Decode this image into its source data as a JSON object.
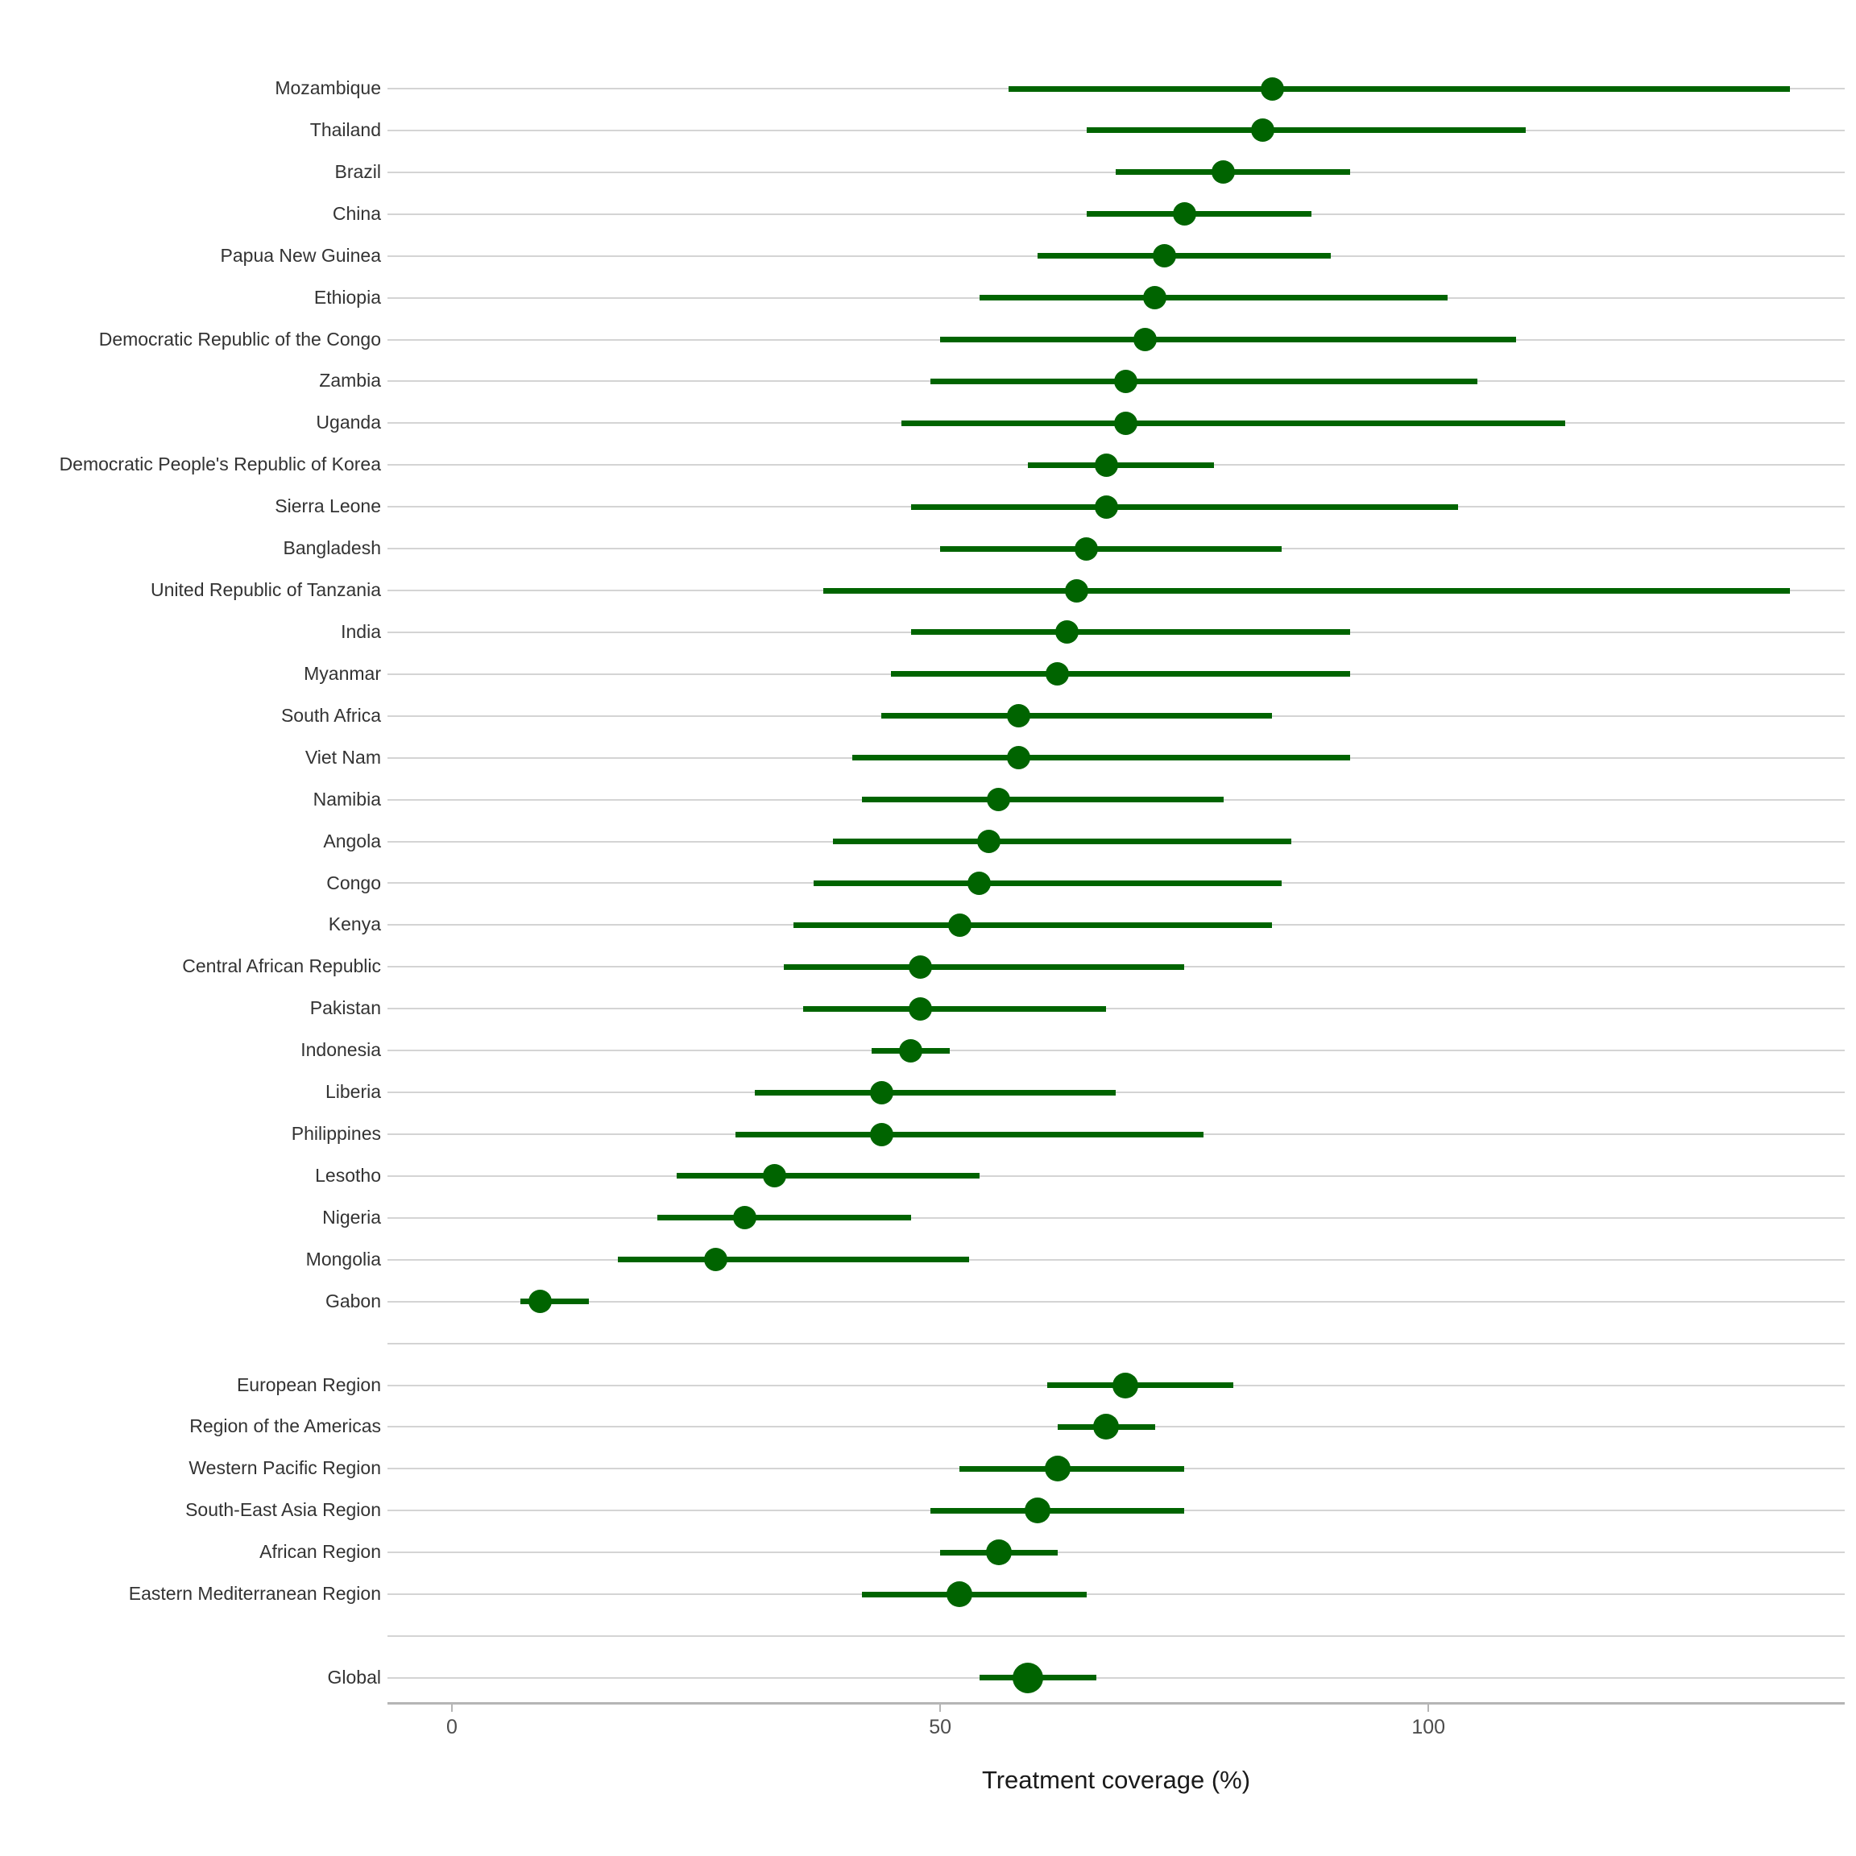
{
  "chart_data": {
    "type": "scatter",
    "subtype": "dot-with-interval-forest-plot",
    "title": "",
    "xlabel": "Treatment coverage (%)",
    "ylabel": "",
    "x_ticks": [
      0,
      50,
      100
    ],
    "xlim": [
      -6.6,
      142.7
    ],
    "grid": "horizontal-row-gridlines",
    "legend": "none",
    "marker_color": "#006400",
    "interval_color": "#006400",
    "gridline_color": "#d4d4d4",
    "axis_line_color": "#b5b5b5",
    "label_color": "#333333",
    "groups": {
      "countries": [
        {
          "label": "Mozambique",
          "estimate": 84,
          "lower": 57,
          "upper": 137
        },
        {
          "label": "Thailand",
          "estimate": 83,
          "lower": 65,
          "upper": 110
        },
        {
          "label": "Brazil",
          "estimate": 79,
          "lower": 68,
          "upper": 92
        },
        {
          "label": "China",
          "estimate": 75,
          "lower": 65,
          "upper": 88
        },
        {
          "label": "Papua New Guinea",
          "estimate": 73,
          "lower": 60,
          "upper": 90
        },
        {
          "label": "Ethiopia",
          "estimate": 72,
          "lower": 54,
          "upper": 102
        },
        {
          "label": "Democratic Republic of the Congo",
          "estimate": 71,
          "lower": 50,
          "upper": 109
        },
        {
          "label": "Zambia",
          "estimate": 69,
          "lower": 49,
          "upper": 105
        },
        {
          "label": "Uganda",
          "estimate": 69,
          "lower": 46,
          "upper": 114
        },
        {
          "label": "Democratic People's Republic of Korea",
          "estimate": 67,
          "lower": 59,
          "upper": 78
        },
        {
          "label": "Sierra Leone",
          "estimate": 67,
          "lower": 47,
          "upper": 103
        },
        {
          "label": "Bangladesh",
          "estimate": 65,
          "lower": 50,
          "upper": 85
        },
        {
          "label": "United Republic of Tanzania",
          "estimate": 64,
          "lower": 38,
          "upper": 137
        },
        {
          "label": "India",
          "estimate": 63,
          "lower": 47,
          "upper": 92
        },
        {
          "label": "Myanmar",
          "estimate": 62,
          "lower": 45,
          "upper": 92
        },
        {
          "label": "South Africa",
          "estimate": 58,
          "lower": 44,
          "upper": 84
        },
        {
          "label": "Viet Nam",
          "estimate": 58,
          "lower": 41,
          "upper": 92
        },
        {
          "label": "Namibia",
          "estimate": 56,
          "lower": 42,
          "upper": 79
        },
        {
          "label": "Angola",
          "estimate": 55,
          "lower": 39,
          "upper": 86
        },
        {
          "label": "Congo",
          "estimate": 54,
          "lower": 37,
          "upper": 85
        },
        {
          "label": "Kenya",
          "estimate": 52,
          "lower": 35,
          "upper": 84
        },
        {
          "label": "Central African Republic",
          "estimate": 48,
          "lower": 34,
          "upper": 75
        },
        {
          "label": "Pakistan",
          "estimate": 48,
          "lower": 36,
          "upper": 67
        },
        {
          "label": "Indonesia",
          "estimate": 47,
          "lower": 43,
          "upper": 51
        },
        {
          "label": "Liberia",
          "estimate": 44,
          "lower": 31,
          "upper": 68
        },
        {
          "label": "Philippines",
          "estimate": 44,
          "lower": 29,
          "upper": 77
        },
        {
          "label": "Lesotho",
          "estimate": 33,
          "lower": 23,
          "upper": 54
        },
        {
          "label": "Nigeria",
          "estimate": 30,
          "lower": 21,
          "upper": 47
        },
        {
          "label": "Mongolia",
          "estimate": 27,
          "lower": 17,
          "upper": 53
        },
        {
          "label": "Gabon",
          "estimate": 9,
          "lower": 7,
          "upper": 14
        }
      ],
      "regions": [
        {
          "label": "European Region",
          "estimate": 69,
          "lower": 61,
          "upper": 80
        },
        {
          "label": "Region of the Americas",
          "estimate": 67,
          "lower": 62,
          "upper": 72
        },
        {
          "label": "Western Pacific Region",
          "estimate": 62,
          "lower": 52,
          "upper": 75
        },
        {
          "label": "South-East Asia Region",
          "estimate": 60,
          "lower": 49,
          "upper": 75
        },
        {
          "label": "African Region",
          "estimate": 56,
          "lower": 50,
          "upper": 62
        },
        {
          "label": "Eastern Mediterranean Region",
          "estimate": 52,
          "lower": 42,
          "upper": 65
        }
      ],
      "global": [
        {
          "label": "Global",
          "estimate": 59,
          "lower": 54,
          "upper": 66
        }
      ]
    }
  },
  "axis": {
    "label": "Treatment coverage (%)",
    "tick_0": "0",
    "tick_50": "50",
    "tick_100": "100"
  }
}
